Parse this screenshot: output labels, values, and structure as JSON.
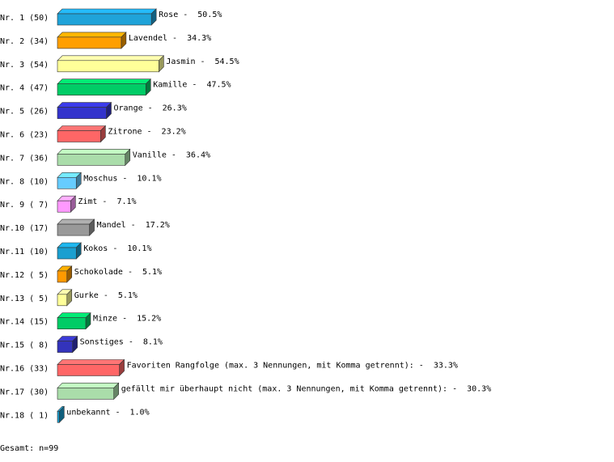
{
  "chart_data": {
    "type": "bar3d",
    "categories": [
      "Nr. 1 (50)",
      "Nr. 2 (34)",
      "Nr. 3 (54)",
      "Nr. 4 (47)",
      "Nr. 5 (26)",
      "Nr. 6 (23)",
      "Nr. 7 (36)",
      "Nr. 8 (10)",
      "Nr. 9 ( 7)",
      "Nr.10 (17)",
      "Nr.11 (10)",
      "Nr.12 ( 5)",
      "Nr.13 ( 5)",
      "Nr.14 (15)",
      "Nr.15 ( 8)",
      "Nr.16 (33)",
      "Nr.17 (30)",
      "Nr.18 ( 1)"
    ],
    "names": [
      "Rose",
      "Lavendel",
      "Jasmin",
      "Kamille",
      "Orange",
      "Zitrone",
      "Vanille",
      "Moschus",
      "Zimt",
      "Mandel",
      "Kokos",
      "Schokolade",
      "Gurke",
      "Minze",
      "Sonstiges",
      "Favoriten Rangfolge (max. 3 Nennungen, mit Komma getrennt):",
      "gefällt mir überhaupt nicht (max. 3 Nennungen, mit Komma getrennt):",
      "unbekannt"
    ],
    "separator": "-",
    "values": [
      50.5,
      34.3,
      54.5,
      47.5,
      26.3,
      23.2,
      36.4,
      10.1,
      7.1,
      17.2,
      10.1,
      5.1,
      5.1,
      15.2,
      8.1,
      33.3,
      30.3,
      1.0
    ],
    "value_labels": [
      "50.5%",
      "34.3%",
      "54.5%",
      "47.5%",
      "26.3%",
      "23.2%",
      "36.4%",
      "10.1%",
      "7.1%",
      "17.2%",
      "10.1%",
      "5.1%",
      "5.1%",
      "15.2%",
      "8.1%",
      "33.3%",
      "30.3%",
      "1.0%"
    ],
    "colors": [
      "#1fa3d9",
      "#ff9f00",
      "#ffff99",
      "#00cc66",
      "#3333cc",
      "#ff6666",
      "#aaddaa",
      "#66ccff",
      "#ff99ff",
      "#999999",
      "#1a9fd0",
      "#ff9900",
      "#ffff99",
      "#00cc66",
      "#3333bb",
      "#ff6666",
      "#aaddaa",
      "#1a9fd0"
    ],
    "footer": "Gesamt: n=99"
  }
}
